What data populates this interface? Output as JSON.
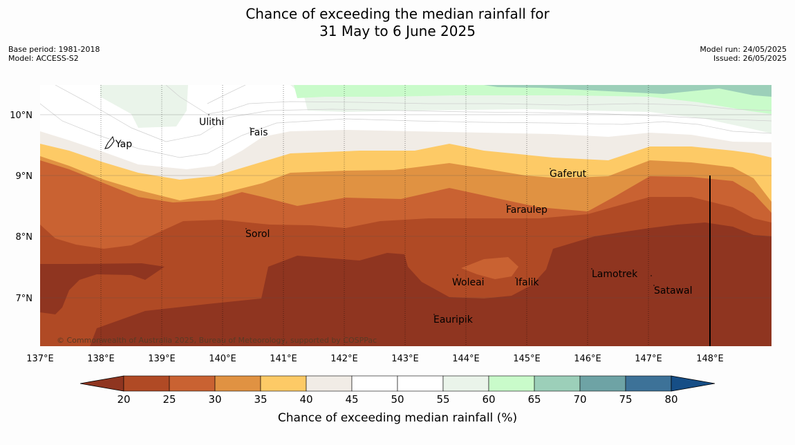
{
  "header": {
    "title_line1": "Chance of exceeding the median rainfall for",
    "title_line2": "31 May to 6 June 2025",
    "base_period": "Base period: 1981-2018",
    "model": "Model: ACCESS-S2",
    "model_run": "Model run: 24/05/2025",
    "issued": "Issued: 26/05/2025"
  },
  "map": {
    "lon_labels": [
      "137°E",
      "138°E",
      "139°E",
      "140°E",
      "141°E",
      "142°E",
      "143°E",
      "144°E",
      "145°E",
      "146°E",
      "147°E",
      "148°E"
    ],
    "lat_labels": [
      "10°N",
      "9°N",
      "8°N",
      "7°N"
    ],
    "places": [
      {
        "name": "Ulithi",
        "icon": "island-dot"
      },
      {
        "name": "Fais",
        "icon": "island-dot"
      },
      {
        "name": "Yap",
        "icon": "island-shape"
      },
      {
        "name": "Gaferut",
        "icon": "island-dot"
      },
      {
        "name": "Faraulep",
        "icon": "island-dot"
      },
      {
        "name": "Sorol",
        "icon": "island-dot"
      },
      {
        "name": "Lamotrek",
        "icon": "island-dot"
      },
      {
        "name": "Woleai",
        "icon": "island-dot"
      },
      {
        "name": "Ifalik",
        "icon": "island-dot"
      },
      {
        "name": "Satawal",
        "icon": "island-dot"
      },
      {
        "name": "Eauripik",
        "icon": "island-dot"
      }
    ],
    "copyright": "© Commonwealth of Australia 2025, Bureau of Meteorology, supported by COSPPac"
  },
  "legend": {
    "ticks": [
      "20",
      "25",
      "30",
      "35",
      "40",
      "45",
      "50",
      "55",
      "60",
      "65",
      "70",
      "75",
      "80"
    ],
    "colors": [
      "#8f3520",
      "#b04a25",
      "#c96232",
      "#e09242",
      "#fdca66",
      "#f1ece6",
      "#ffffff",
      "#ffffff",
      "#eaf4ea",
      "#c9fbca",
      "#9ccfb9",
      "#6ea3a5",
      "#3d7298",
      "#164e86"
    ],
    "title": "Chance of exceeding median rainfall (%)"
  }
}
